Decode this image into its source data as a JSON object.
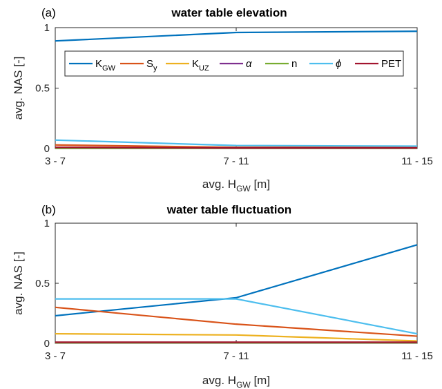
{
  "chart_data": [
    {
      "type": "line",
      "panel_label": "(a)",
      "title": "water table elevation",
      "xlabel": "avg. H_GW [m]",
      "xlabel_main": "avg. H",
      "xlabel_sub": "GW",
      "xlabel_unit": " [m]",
      "ylabel": "avg. NAS [-]",
      "categories": [
        "3 - 7",
        "7 - 11",
        "11 - 15"
      ],
      "ylim": [
        0,
        1
      ],
      "yticks": [
        "0",
        "0.5",
        "1"
      ],
      "legend": "top (inside axes)",
      "series": [
        {
          "name": "K_GW",
          "color": "#0072BD",
          "values": [
            0.89,
            0.96,
            0.97
          ]
        },
        {
          "name": "S_y",
          "color": "#D95319",
          "values": [
            0.03,
            0.01,
            0.01
          ]
        },
        {
          "name": "K_UZ",
          "color": "#EDB120",
          "values": [
            0.01,
            0.005,
            0.005
          ]
        },
        {
          "name": "α",
          "color": "#7E2F8E",
          "values": [
            0.002,
            0.002,
            0.002
          ]
        },
        {
          "name": "n",
          "color": "#77AC30",
          "values": [
            0.002,
            0.002,
            0.002
          ]
        },
        {
          "name": "ϕ",
          "color": "#4DBEEE",
          "values": [
            0.07,
            0.025,
            0.02
          ]
        },
        {
          "name": "PET",
          "color": "#A2142F",
          "values": [
            0.01,
            0.005,
            0.005
          ]
        }
      ]
    },
    {
      "type": "line",
      "panel_label": "(b)",
      "title": "water table fluctuation",
      "xlabel": "avg. H_GW [m]",
      "xlabel_main": "avg. H",
      "xlabel_sub": "GW",
      "xlabel_unit": " [m]",
      "ylabel": "avg. NAS [-]",
      "categories": [
        "3 - 7",
        "7 - 11",
        "11 - 15"
      ],
      "ylim": [
        0,
        1
      ],
      "yticks": [
        "0",
        "0.5",
        "1"
      ],
      "series": [
        {
          "name": "K_GW",
          "color": "#0072BD",
          "values": [
            0.23,
            0.38,
            0.82
          ]
        },
        {
          "name": "S_y",
          "color": "#D95319",
          "values": [
            0.3,
            0.16,
            0.06
          ]
        },
        {
          "name": "K_UZ",
          "color": "#EDB120",
          "values": [
            0.08,
            0.07,
            0.02
          ]
        },
        {
          "name": "α",
          "color": "#7E2F8E",
          "values": [
            0.005,
            0.005,
            0.005
          ]
        },
        {
          "name": "n",
          "color": "#77AC30",
          "values": [
            0.005,
            0.005,
            0.005
          ]
        },
        {
          "name": "ϕ",
          "color": "#4DBEEE",
          "values": [
            0.37,
            0.37,
            0.08
          ]
        },
        {
          "name": "PET",
          "color": "#A2142F",
          "values": [
            0.01,
            0.01,
            0.01
          ]
        }
      ]
    }
  ],
  "legend_entries": [
    {
      "main": "K",
      "sub": "GW",
      "italic": false
    },
    {
      "main": "S",
      "sub": "y",
      "italic": false
    },
    {
      "main": "K",
      "sub": "UZ",
      "italic": false
    },
    {
      "main": "α",
      "sub": "",
      "italic": true
    },
    {
      "main": "n",
      "sub": "",
      "italic": false
    },
    {
      "main": "ϕ",
      "sub": "",
      "italic": true
    },
    {
      "main": "PET",
      "sub": "",
      "italic": false
    }
  ]
}
